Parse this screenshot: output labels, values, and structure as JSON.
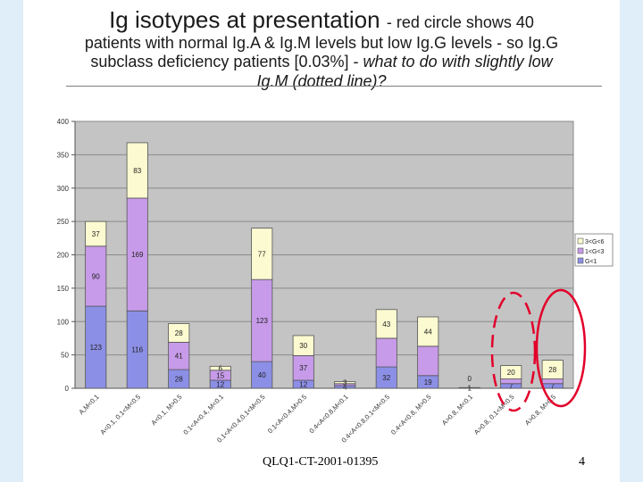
{
  "slide": {
    "title_main": "Ig isotypes at presentation",
    "title_rest": "- red circle shows 40",
    "title_line2": "patients with normal Ig.A & Ig.M levels but low Ig.G levels - so Ig.G",
    "title_line3_plain": "subclass deficiency patients [0.03%] -",
    "title_line3_italic": "what to do with slightly low",
    "title_line4_italic": "Ig.M (dotted line)?",
    "footer_code": "QLQ1-CT-2001-01395",
    "page_number": "4"
  },
  "chart_data": {
    "type": "bar",
    "stacked": true,
    "ylim": [
      0,
      400
    ],
    "yticks": [
      0,
      50,
      100,
      150,
      200,
      250,
      300,
      350,
      400
    ],
    "grid": true,
    "legend_position": "right",
    "categories": [
      "A,M<0.1",
      "A<0.1, 0.1<M<0.5",
      "A<0.1, M>0.5",
      "0.1<A<0.4, M<0.1",
      "0.1<A<0.4,0.1<M<0.5",
      "0.1<A<0.4,M>0.5",
      "0.4<A<0.8,M<0.1",
      "0.4<A<0.8,0.1<M<0.5",
      "0.4<A<0.8, M>0.5",
      "A>0.8, M<0.1",
      "A>0.8, 0.1<M<0.5",
      "A>0.8, M>0.5"
    ],
    "series": [
      {
        "name": "G<1",
        "color": "#8c8fe6",
        "values": [
          123,
          116,
          28,
          12,
          40,
          12,
          4,
          32,
          19,
          0,
          7,
          7
        ]
      },
      {
        "name": "1<G<3",
        "color": "#c79be9",
        "values": [
          90,
          169,
          41,
          15,
          123,
          37,
          3,
          43,
          44,
          0,
          7,
          7
        ]
      },
      {
        "name": "3<G<6",
        "color": "#fbfad0",
        "values": [
          37,
          83,
          28,
          6,
          77,
          30,
          3,
          43,
          44,
          1,
          20,
          28
        ]
      }
    ],
    "data_labels": [
      [
        "123",
        "116",
        "28",
        "12",
        "40",
        "12",
        "4",
        "32",
        "19",
        "0",
        "7",
        "7"
      ],
      [
        "90",
        "169",
        "41",
        "15",
        "123",
        "37",
        "",
        "",
        "",
        "",
        "",
        ""
      ],
      [
        "37",
        "83",
        "28",
        "6",
        "77",
        "30",
        "3",
        "43",
        "44",
        "1",
        "20",
        "28"
      ]
    ]
  }
}
